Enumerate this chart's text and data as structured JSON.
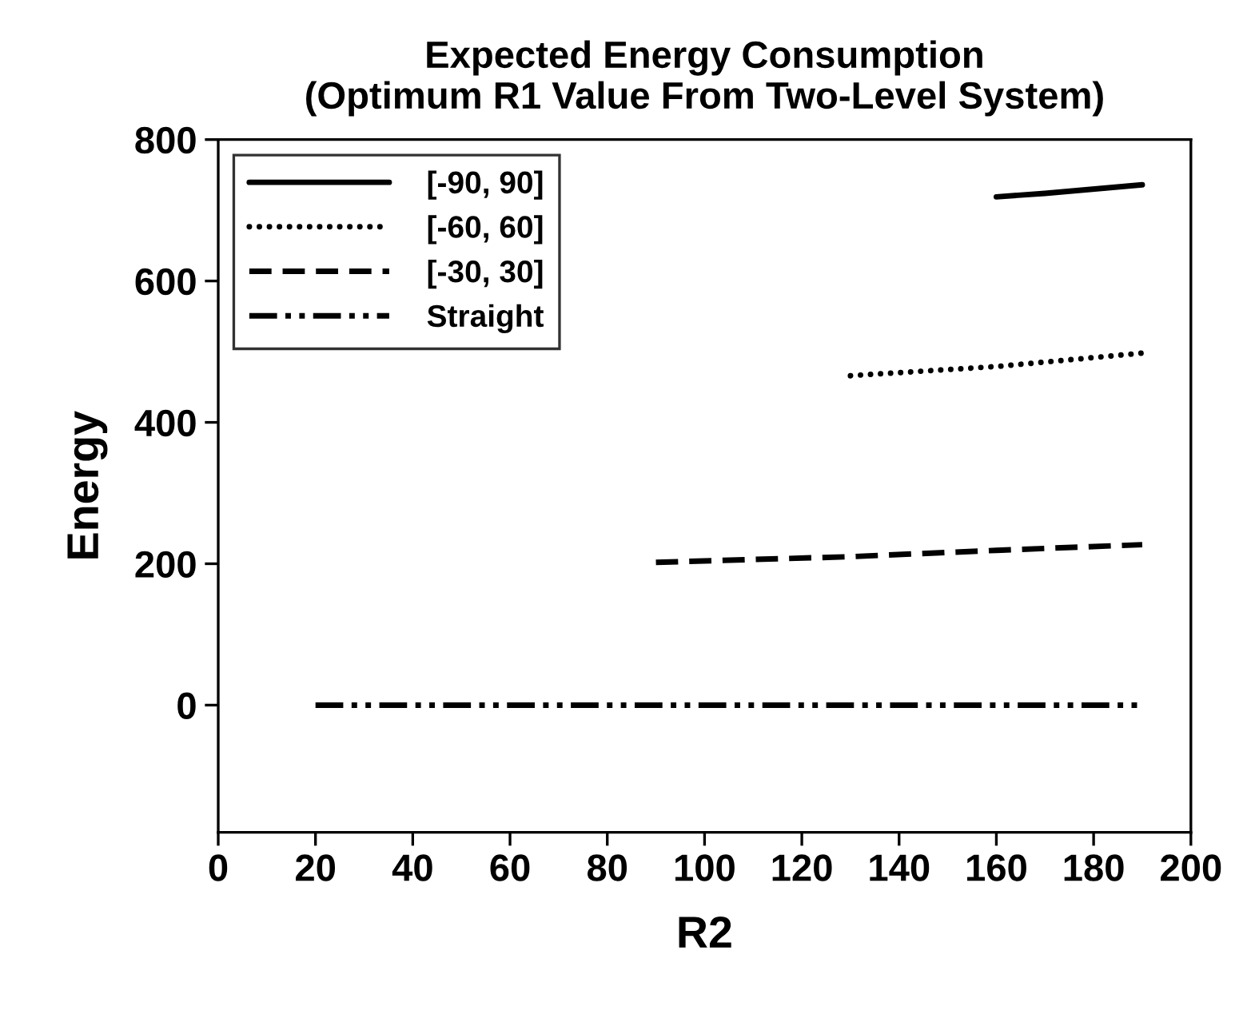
{
  "chart_data": {
    "type": "line",
    "title": "Expected Energy Consumption\n(Optimum R1 Value From Two-Level System)",
    "xlabel": "R2",
    "ylabel": "Energy",
    "series": [
      {
        "name": "[-90, 90]",
        "color": "#000000",
        "line_style": "solid",
        "x": [
          160,
          170,
          190
        ],
        "values": [
          719,
          724,
          736
        ]
      },
      {
        "name": "[-60, 60]",
        "color": "#000000",
        "line_style": "dotted",
        "x": [
          130,
          160,
          190
        ],
        "values": [
          466,
          479,
          498
        ]
      },
      {
        "name": "[-30, 30]",
        "color": "#000000",
        "line_style": "dashed",
        "x": [
          90,
          130,
          160,
          190
        ],
        "values": [
          202,
          210,
          219,
          227
        ]
      },
      {
        "name": "Straight",
        "color": "#000000",
        "line_style": "dashdotdot",
        "x": [
          20,
          190
        ],
        "values": [
          0,
          0
        ]
      }
    ],
    "xlim": [
      0,
      200
    ],
    "xticks": [
      0,
      20,
      40,
      60,
      80,
      100,
      120,
      140,
      160,
      180,
      200
    ],
    "ylim": [
      -180,
      800
    ],
    "yticks": [
      0,
      200,
      400,
      600,
      800
    ],
    "grid": false,
    "legend": "top left",
    "marker": "none"
  }
}
